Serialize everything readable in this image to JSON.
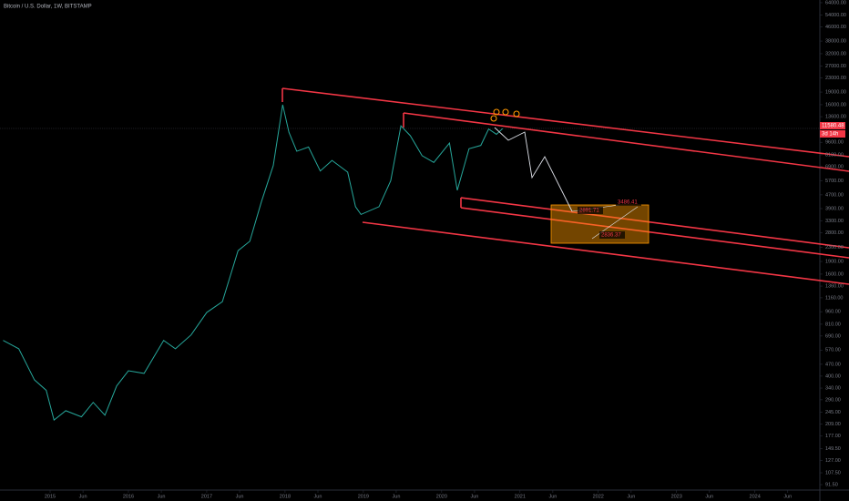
{
  "chart_data": {
    "type": "line",
    "title": "Bitcoin / U.S. Dollar, 1W, BITSTAMP",
    "x": [
      2014.4,
      2014.6,
      2014.8,
      2014.95,
      2015.05,
      2015.2,
      2015.4,
      2015.55,
      2015.7,
      2015.85,
      2016.0,
      2016.2,
      2016.45,
      2016.6,
      2016.8,
      2017.0,
      2017.2,
      2017.4,
      2017.55,
      2017.7,
      2017.85,
      2017.97,
      2018.05,
      2018.15,
      2018.3,
      2018.45,
      2018.6,
      2018.8,
      2018.9,
      2018.97,
      2019.2,
      2019.35,
      2019.48,
      2019.6,
      2019.75,
      2019.9,
      2020.1,
      2020.2,
      2020.35,
      2020.5,
      2020.6,
      2020.7,
      2020.78
    ],
    "series": [
      {
        "name": "BTCUSD",
        "color": "#26a69a",
        "values": [
          650,
          580,
          380,
          330,
          220,
          250,
          230,
          280,
          235,
          350,
          430,
          415,
          650,
          580,
          700,
          950,
          1100,
          2200,
          2500,
          4300,
          7000,
          16000,
          11000,
          8500,
          9000,
          6500,
          7500,
          6400,
          4000,
          3600,
          4000,
          5700,
          12000,
          10500,
          8000,
          7300,
          9500,
          5000,
          8800,
          9200,
          11500,
          10700,
          11580
        ]
      }
    ],
    "log_scale": true,
    "xlim": [
      2014.36,
      2024.83
    ],
    "xticks": [
      {
        "value": 2015,
        "label": "2015"
      },
      {
        "value": 2015.42,
        "label": "Jun"
      },
      {
        "value": 2016,
        "label": "2016"
      },
      {
        "value": 2016.42,
        "label": "Jun"
      },
      {
        "value": 2017,
        "label": "2017"
      },
      {
        "value": 2017.42,
        "label": "Jun"
      },
      {
        "value": 2018,
        "label": "2018"
      },
      {
        "value": 2018.42,
        "label": "Jun"
      },
      {
        "value": 2019,
        "label": "2019"
      },
      {
        "value": 2019.42,
        "label": "Jun"
      },
      {
        "value": 2020,
        "label": "2020"
      },
      {
        "value": 2020.42,
        "label": "Jun"
      },
      {
        "value": 2021,
        "label": "2021"
      },
      {
        "value": 2021.42,
        "label": "Jun"
      },
      {
        "value": 2022,
        "label": "2022"
      },
      {
        "value": 2022.42,
        "label": "Jun"
      },
      {
        "value": 2023,
        "label": "2023"
      },
      {
        "value": 2023.42,
        "label": "Jun"
      },
      {
        "value": 2024,
        "label": "2024"
      },
      {
        "value": 2024.42,
        "label": "Jun"
      }
    ],
    "ylim": [
      85,
      66400
    ],
    "yticks": [
      {
        "value": 64000,
        "label": "64000.00"
      },
      {
        "value": 54000,
        "label": "54000.00"
      },
      {
        "value": 46000,
        "label": "46000.00"
      },
      {
        "value": 38000,
        "label": "38000.00"
      },
      {
        "value": 32000,
        "label": "32000.00"
      },
      {
        "value": 27000,
        "label": "27000.00"
      },
      {
        "value": 23000,
        "label": "23000.00"
      },
      {
        "value": 19000,
        "label": "19000.00"
      },
      {
        "value": 16000,
        "label": "16000.00"
      },
      {
        "value": 13600,
        "label": "13600.00"
      },
      {
        "value": 9600,
        "label": "9600.00"
      },
      {
        "value": 8100,
        "label": "8100.00"
      },
      {
        "value": 6900,
        "label": "6900.00"
      },
      {
        "value": 5700,
        "label": "5700.00"
      },
      {
        "value": 4700,
        "label": "4700.00"
      },
      {
        "value": 3900,
        "label": "3900.00"
      },
      {
        "value": 3300,
        "label": "3300.00"
      },
      {
        "value": 2800,
        "label": "2800.00"
      },
      {
        "value": 2300,
        "label": "2300.00"
      },
      {
        "value": 1900,
        "label": "1900.00"
      },
      {
        "value": 1600,
        "label": "1600.00"
      },
      {
        "value": 1360,
        "label": "1360.00"
      },
      {
        "value": 1160,
        "label": "1160.00"
      },
      {
        "value": 960,
        "label": "960.00"
      },
      {
        "value": 810,
        "label": "810.00"
      },
      {
        "value": 690,
        "label": "690.00"
      },
      {
        "value": 570,
        "label": "570.00"
      },
      {
        "value": 470,
        "label": "470.00"
      },
      {
        "value": 400,
        "label": "400.00"
      },
      {
        "value": 340,
        "label": "340.00"
      },
      {
        "value": 290,
        "label": "290.00"
      },
      {
        "value": 245,
        "label": "245.00"
      },
      {
        "value": 209,
        "label": "209.00"
      },
      {
        "value": 177,
        "label": "177.00"
      },
      {
        "value": 149.5,
        "label": "149.50"
      },
      {
        "value": 127,
        "label": "127.00"
      },
      {
        "value": 107.5,
        "label": "107.50"
      },
      {
        "value": 91.5,
        "label": "91.50"
      }
    ],
    "annotations": [
      "11580.48",
      "3d 14h",
      "2891.71",
      "3486.41",
      "2836.37"
    ]
  }
}
